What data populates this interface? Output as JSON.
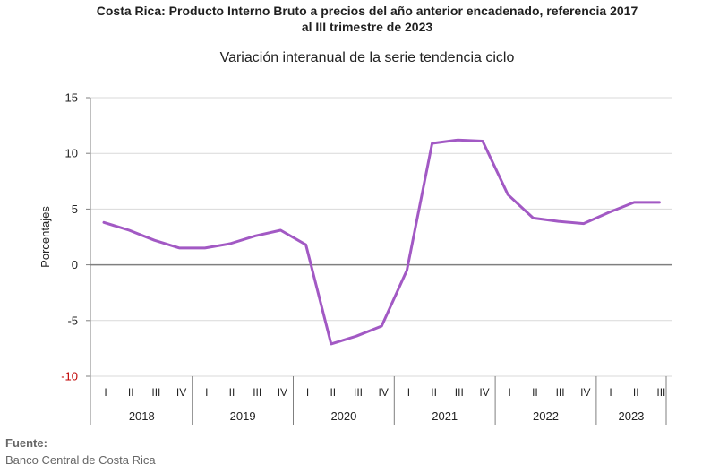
{
  "header": {
    "title_line1": "Costa Rica: Producto Interno Bruto a precios del año anterior encadenado, referencia 2017",
    "title_line2": "al III trimestre de 2023",
    "subtitle": "Variación interanual de la serie tendencia ciclo"
  },
  "source": {
    "label": "Fuente:",
    "text": "Banco Central de Costa Rica"
  },
  "chart_data": {
    "type": "line",
    "title": "Costa Rica: Producto Interno Bruto a precios del año anterior encadenado, referencia 2017 al III trimestre de 2023",
    "subtitle": "Variación interanual de la serie tendencia ciclo",
    "ylabel": "Porcentajes",
    "xlabel": "",
    "ylim": [
      -10,
      15
    ],
    "yticks": [
      15,
      10,
      5,
      0,
      -5,
      -10
    ],
    "grid": true,
    "colors": {
      "line": "#a259c4",
      "grid": "#d9d9d9",
      "zero": "#7f7f7f",
      "negative_tick": "#c00000"
    },
    "years": [
      "2018",
      "2019",
      "2020",
      "2021",
      "2022",
      "2023"
    ],
    "categories": [
      {
        "year": "2018",
        "quarter": "I"
      },
      {
        "year": "2018",
        "quarter": "II"
      },
      {
        "year": "2018",
        "quarter": "III"
      },
      {
        "year": "2018",
        "quarter": "IV"
      },
      {
        "year": "2019",
        "quarter": "I"
      },
      {
        "year": "2019",
        "quarter": "II"
      },
      {
        "year": "2019",
        "quarter": "III"
      },
      {
        "year": "2019",
        "quarter": "IV"
      },
      {
        "year": "2020",
        "quarter": "I"
      },
      {
        "year": "2020",
        "quarter": "II"
      },
      {
        "year": "2020",
        "quarter": "III"
      },
      {
        "year": "2020",
        "quarter": "IV"
      },
      {
        "year": "2021",
        "quarter": "I"
      },
      {
        "year": "2021",
        "quarter": "II"
      },
      {
        "year": "2021",
        "quarter": "III"
      },
      {
        "year": "2021",
        "quarter": "IV"
      },
      {
        "year": "2022",
        "quarter": "I"
      },
      {
        "year": "2022",
        "quarter": "II"
      },
      {
        "year": "2022",
        "quarter": "III"
      },
      {
        "year": "2022",
        "quarter": "IV"
      },
      {
        "year": "2023",
        "quarter": "I"
      },
      {
        "year": "2023",
        "quarter": "II"
      },
      {
        "year": "2023",
        "quarter": "III"
      }
    ],
    "values": [
      3.8,
      3.1,
      2.2,
      1.5,
      1.5,
      1.9,
      2.6,
      3.1,
      1.8,
      -7.1,
      -6.4,
      -5.5,
      -0.5,
      10.9,
      11.2,
      11.1,
      6.3,
      4.2,
      3.9,
      3.7,
      4.7,
      5.6,
      5.6
    ]
  }
}
